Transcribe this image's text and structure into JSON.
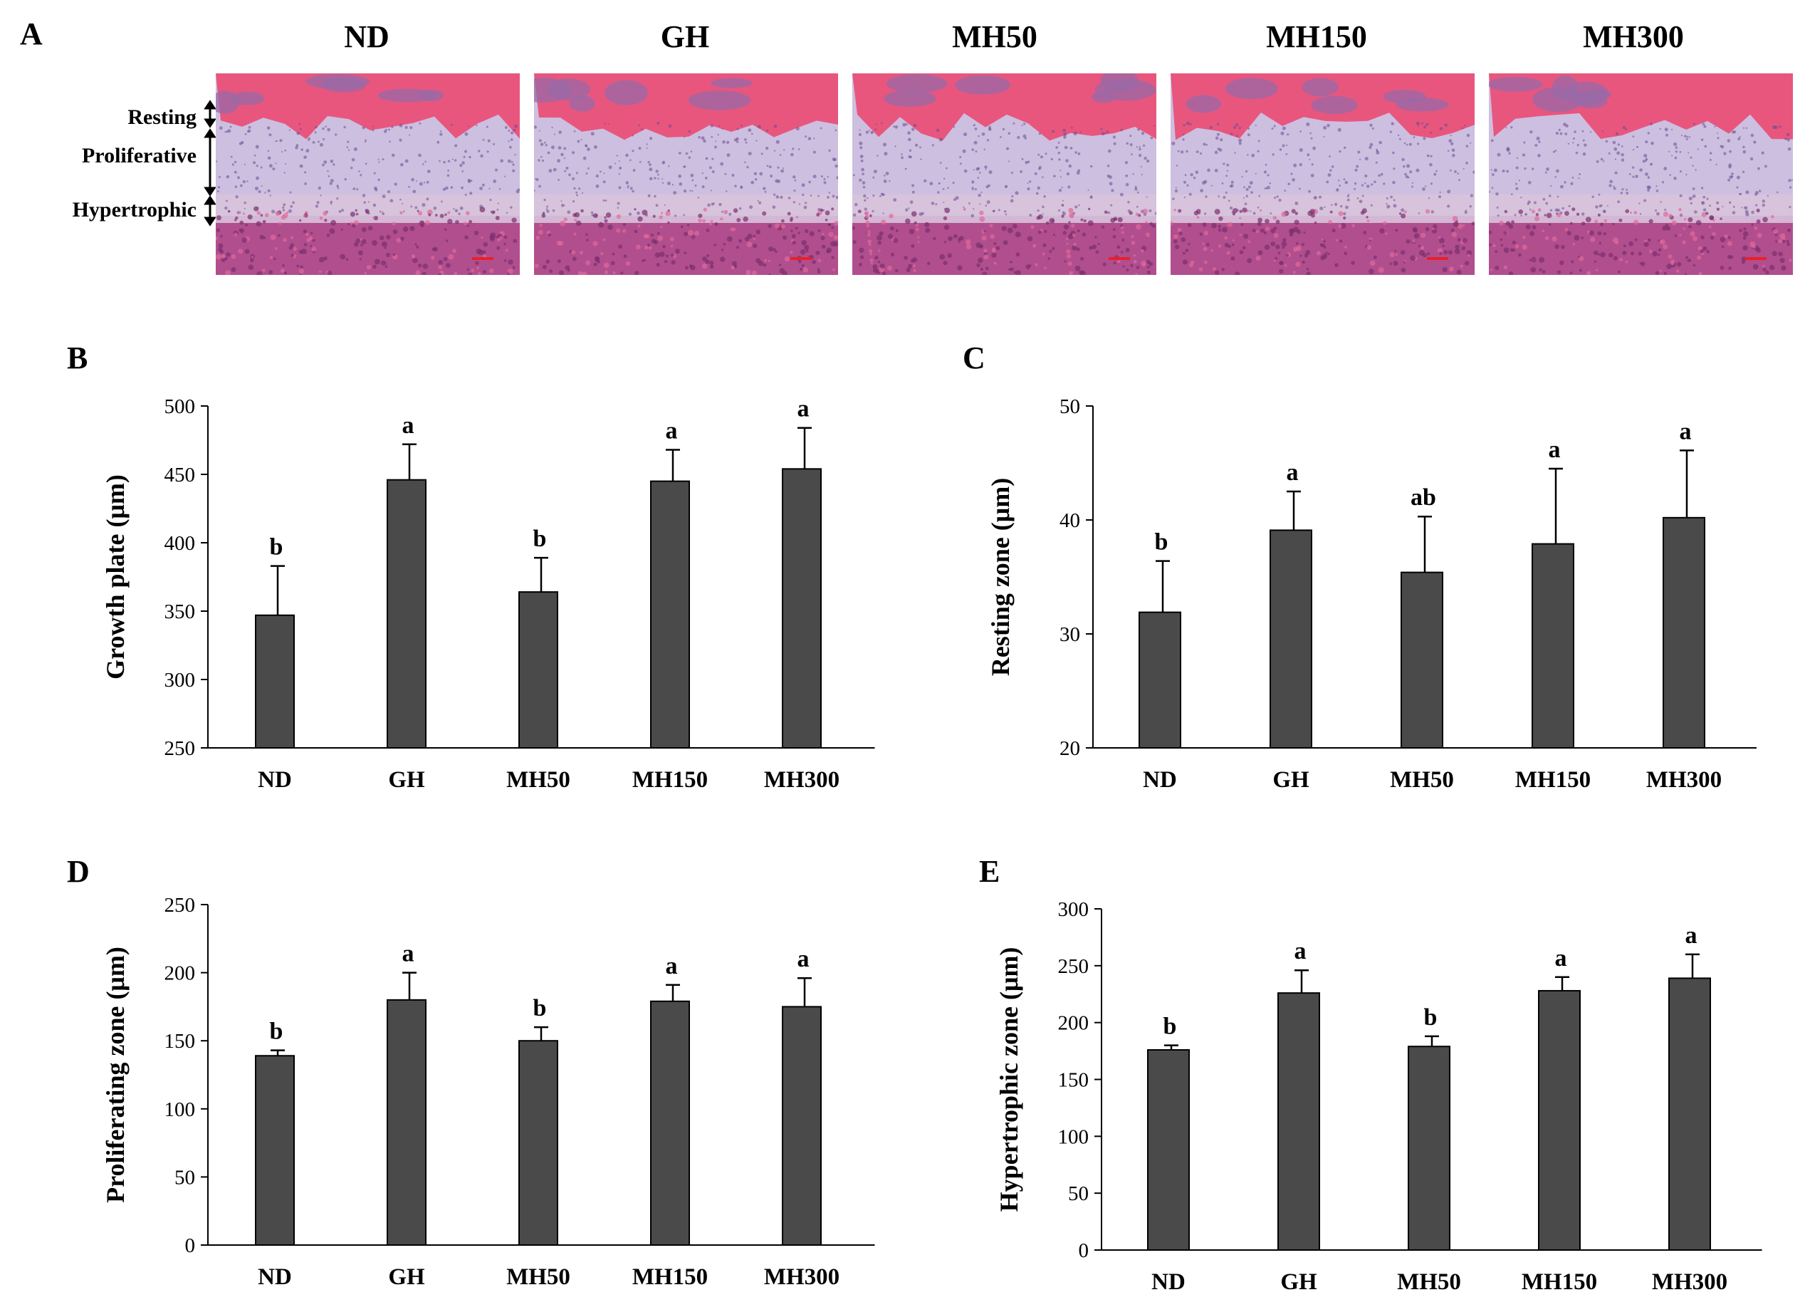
{
  "panel_a": {
    "letter": "A",
    "groups": [
      "ND",
      "GH",
      "MH50",
      "MH150",
      "MH300"
    ],
    "zone_labels": [
      "Resting",
      "Proliferative",
      "Hypertrophic"
    ],
    "colors": {
      "bone": "#e8567e",
      "cartilage": "#cdbfe0",
      "marrow": "#b14e8e",
      "scale_bar": "#e8202a"
    }
  },
  "bar_color": "#4a4a4a",
  "chart_data": [
    {
      "letter": "B",
      "type": "bar",
      "categories": [
        "ND",
        "GH",
        "MH50",
        "MH150",
        "MH300"
      ],
      "values": [
        347,
        446,
        364,
        445,
        454
      ],
      "errors": [
        36,
        26,
        25,
        23,
        30
      ],
      "sig_letters": [
        "b",
        "a",
        "b",
        "a",
        "a"
      ],
      "ylabel": "Growth plate (μm)",
      "ylim": [
        250,
        500
      ],
      "yticks": [
        250,
        300,
        350,
        400,
        450,
        500
      ]
    },
    {
      "letter": "C",
      "type": "bar",
      "categories": [
        "ND",
        "GH",
        "MH50",
        "MH150",
        "MH300"
      ],
      "values": [
        31.9,
        39.1,
        35.4,
        37.9,
        40.2
      ],
      "errors": [
        4.5,
        3.4,
        4.9,
        6.6,
        5.9
      ],
      "sig_letters": [
        "b",
        "a",
        "ab",
        "a",
        "a"
      ],
      "ylabel": "Resting zone (μm)",
      "ylim": [
        20,
        50
      ],
      "yticks": [
        20,
        30,
        40,
        50
      ]
    },
    {
      "letter": "D",
      "type": "bar",
      "categories": [
        "ND",
        "GH",
        "MH50",
        "MH150",
        "MH300"
      ],
      "values": [
        139,
        180,
        150,
        179,
        175
      ],
      "errors": [
        4,
        20,
        10,
        12,
        21
      ],
      "sig_letters": [
        "b",
        "a",
        "b",
        "a",
        "a"
      ],
      "ylabel": "Proliferating zone (μm)",
      "ylim": [
        0,
        250
      ],
      "yticks": [
        0,
        50,
        100,
        150,
        200,
        250
      ]
    },
    {
      "letter": "E",
      "type": "bar",
      "categories": [
        "ND",
        "GH",
        "MH50",
        "MH150",
        "MH300"
      ],
      "values": [
        176,
        226,
        179,
        228,
        239
      ],
      "errors": [
        4,
        20,
        9,
        12,
        21
      ],
      "sig_letters": [
        "b",
        "a",
        "b",
        "a",
        "a"
      ],
      "ylabel": "Hypertrophic zone (μm)",
      "ylim": [
        0,
        300
      ],
      "yticks": [
        0,
        50,
        100,
        150,
        200,
        250,
        300
      ]
    }
  ]
}
